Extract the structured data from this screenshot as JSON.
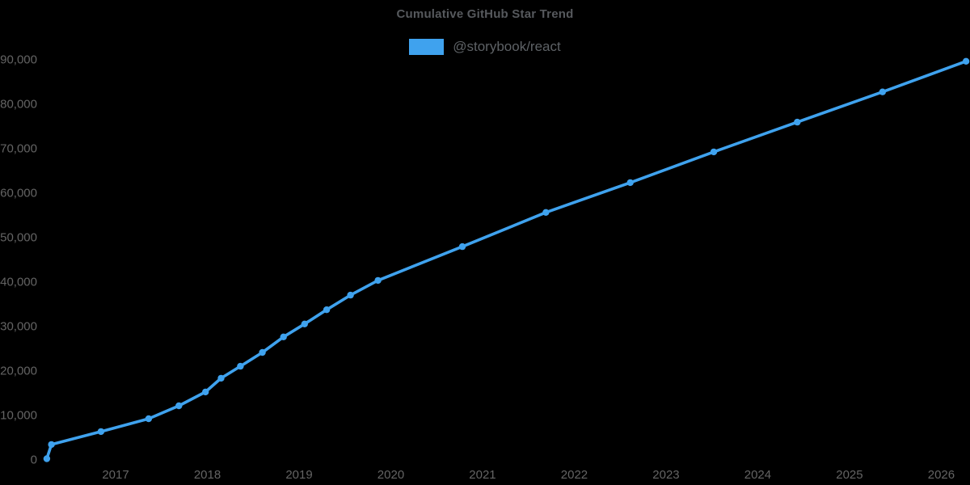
{
  "chart_data": {
    "type": "line",
    "title": "Cumulative GitHub Star Trend",
    "xlabel": "",
    "ylabel": "",
    "legend_position": "top-center",
    "grid": false,
    "marker": "circle",
    "xlim": [
      2016.242,
      2026.287
    ],
    "ylim": [
      0,
      90000
    ],
    "x_ticks": [
      2017,
      2018,
      2019,
      2020,
      2021,
      2022,
      2023,
      2024,
      2025,
      2026
    ],
    "x_tick_labels": [
      "2017",
      "2018",
      "2019",
      "2020",
      "2021",
      "2022",
      "2023",
      "2024",
      "2025",
      "2026"
    ],
    "y_ticks": [
      0,
      10000,
      20000,
      30000,
      40000,
      50000,
      60000,
      70000,
      80000,
      90000
    ],
    "y_tick_labels": [
      "0",
      "10,000",
      "20,000",
      "30,000",
      "40,000",
      "50,000",
      "60,000",
      "70,000",
      "80,000",
      "90,000"
    ],
    "series": [
      {
        "name": "@storybook/react",
        "color": "#3fa2ee",
        "x": [
          2016.25,
          2016.3,
          2016.84,
          2017.36,
          2017.69,
          2017.98,
          2018.15,
          2018.36,
          2018.6,
          2018.83,
          2019.06,
          2019.3,
          2019.56,
          2019.86,
          2020.78,
          2021.69,
          2022.61,
          2023.52,
          2024.43,
          2025.36,
          2026.27
        ],
        "values": [
          100,
          3300,
          6200,
          9100,
          12000,
          15100,
          18200,
          20900,
          24000,
          27500,
          30400,
          33600,
          36900,
          40200,
          47800,
          55500,
          62200,
          69100,
          75800,
          82600,
          89500
        ]
      }
    ]
  },
  "style": {
    "background": "#000000",
    "title_color": "#56595d",
    "tick_label_color": "#646464",
    "legend_text_color": "#5e6266",
    "line_color": "#3fa2ee"
  }
}
